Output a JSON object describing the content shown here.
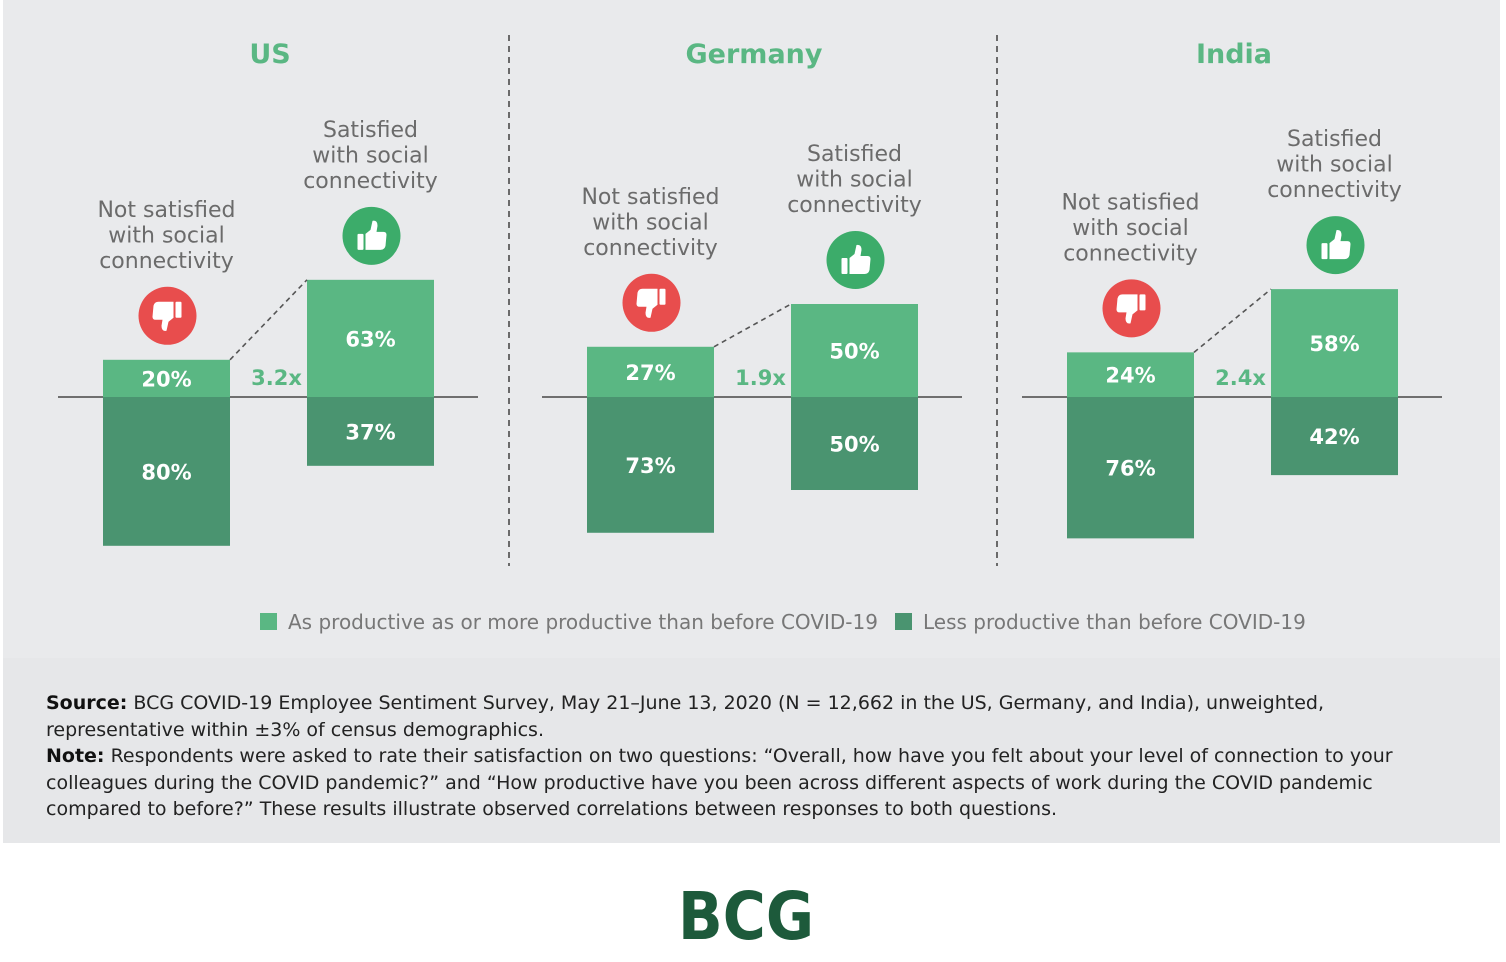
{
  "chart_data": {
    "type": "bar",
    "subtype": "diverging-stacked",
    "panels": [
      {
        "title": "US",
        "groups": [
          {
            "label": "Not satisfied with social connectivity",
            "label_lines": [
              "Not satisfied",
              "with social",
              "connectivity"
            ],
            "icon": "thumbs-down-icon",
            "productive": 20,
            "less_productive": 80
          },
          {
            "label": "Satisfied with social connectivity",
            "label_lines": [
              "Satisfied",
              "with social",
              "connectivity"
            ],
            "icon": "thumbs-up-icon",
            "productive": 63,
            "less_productive": 37
          }
        ],
        "multiplier": "3.2x"
      },
      {
        "title": "Germany",
        "groups": [
          {
            "label": "Not satisfied with social connectivity",
            "label_lines": [
              "Not satisfied",
              "with social",
              "connectivity"
            ],
            "icon": "thumbs-down-icon",
            "productive": 27,
            "less_productive": 73
          },
          {
            "label": "Satisfied with social connectivity",
            "label_lines": [
              "Satisfied",
              "with social",
              "connectivity"
            ],
            "icon": "thumbs-up-icon",
            "productive": 50,
            "less_productive": 50
          }
        ],
        "multiplier": "1.9x"
      },
      {
        "title": "India",
        "groups": [
          {
            "label": "Not satisfied with social connectivity",
            "label_lines": [
              "Not satisfied",
              "with social",
              "connectivity"
            ],
            "icon": "thumbs-down-icon",
            "productive": 24,
            "less_productive": 76
          },
          {
            "label": "Satisfied with social connectivity",
            "label_lines": [
              "Satisfied",
              "with social",
              "connectivity"
            ],
            "icon": "thumbs-up-icon",
            "productive": 58,
            "less_productive": 42
          }
        ],
        "multiplier": "2.4x"
      }
    ],
    "legend": [
      {
        "name": "As productive as or more productive than before COVID-19",
        "color": "#5ab783"
      },
      {
        "name": "Less productive than before COVID-19",
        "color": "#4a9470"
      }
    ],
    "value_suffix": "%",
    "ylim": [
      -100,
      100
    ],
    "legend_position": "bottom-center"
  },
  "colors": {
    "productive": "#5ab783",
    "less_productive": "#4a9470",
    "title": "#5ab783",
    "thumbs_down": "#e84d4d",
    "thumbs_up": "#3cac6a",
    "logo": "#1d5a3b"
  },
  "notes": {
    "source_label": "Source:",
    "source_text": " BCG COVID-19 Employee Sentiment Survey, May 21–June 13, 2020 (N = 12,662 in the US, Germany, and India), unweighted, representative within ±3% of census demographics.",
    "note_label": "Note:",
    "note_text": " Respondents were asked to rate their satisfaction on two questions: “Overall, how have you felt about your level of connection to your colleagues during the COVID pandemic?” and “How productive have you been across different aspects of work during the COVID pandemic compared to before?” These results illustrate observed correlations between responses to both questions."
  },
  "logo": {
    "text": "BCG"
  }
}
